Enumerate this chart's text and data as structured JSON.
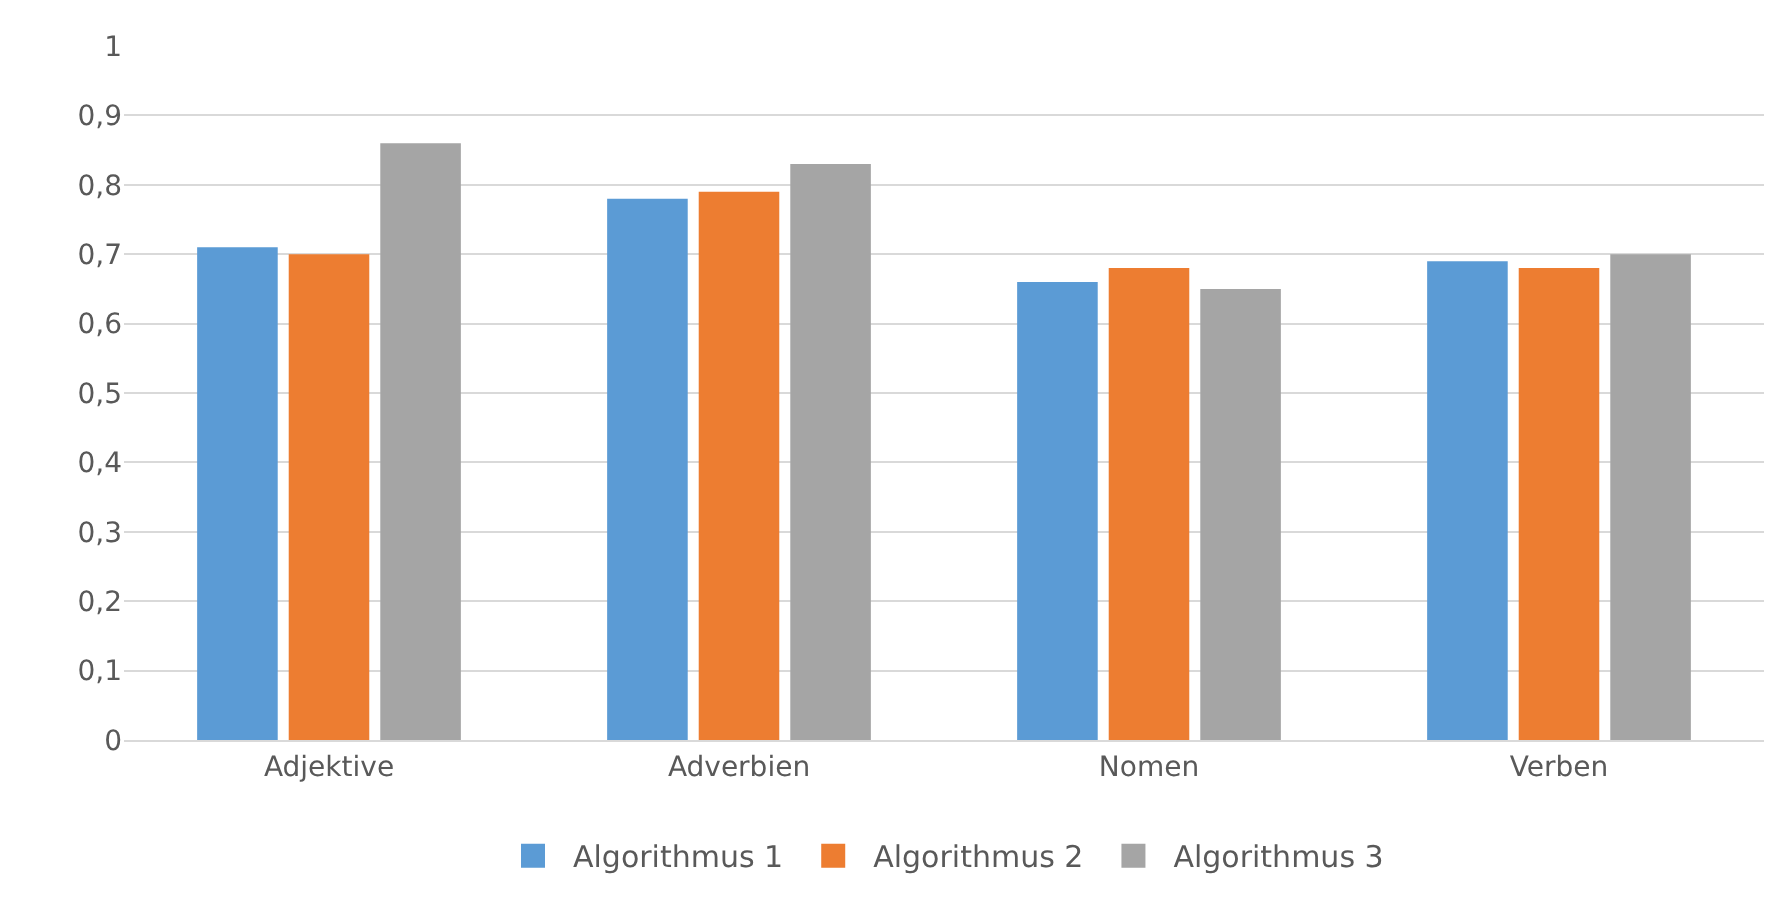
{
  "chart_data": {
    "type": "bar",
    "categories": [
      "Adjektive",
      "Adverbien",
      "Nomen",
      "Verben"
    ],
    "series": [
      {
        "name": "Algorithmus 1",
        "color": "#5b9bd5",
        "values": [
          0.71,
          0.78,
          0.66,
          0.69
        ]
      },
      {
        "name": "Algorithmus 2",
        "color": "#ed7d31",
        "values": [
          0.7,
          0.79,
          0.68,
          0.68
        ]
      },
      {
        "name": "Algorithmus 3",
        "color": "#a5a5a5",
        "values": [
          0.86,
          0.83,
          0.65,
          0.7
        ]
      }
    ],
    "ylim": [
      0,
      1
    ],
    "yticks": [
      0,
      {
        "value": 0.1,
        "label": "0,1"
      },
      {
        "value": 0.2,
        "label": "0,2"
      },
      {
        "value": 0.3,
        "label": "0,3"
      },
      {
        "value": 0.4,
        "label": "0,4"
      },
      {
        "value": 0.5,
        "label": "0,5"
      },
      {
        "value": 0.6,
        "label": "0,6"
      },
      {
        "value": 0.7,
        "label": "0,7"
      },
      {
        "value": 0.8,
        "label": "0,8"
      },
      {
        "value": 0.9,
        "label": "0,9"
      },
      1
    ],
    "grid": "y",
    "legend": "bottom"
  }
}
